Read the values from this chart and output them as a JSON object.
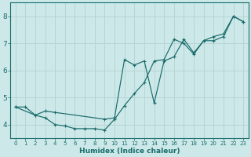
{
  "xlabel": "Humidex (Indice chaleur)",
  "bg_color": "#cce8e8",
  "grid_color": "#b8d4d4",
  "line_color": "#1a6b6b",
  "xlim": [
    -0.5,
    23.5
  ],
  "ylim": [
    3.5,
    8.5
  ],
  "yticks": [
    4,
    5,
    6,
    7,
    8
  ],
  "xticks": [
    0,
    1,
    2,
    3,
    4,
    5,
    6,
    7,
    8,
    9,
    10,
    11,
    12,
    13,
    14,
    15,
    16,
    17,
    18,
    19,
    20,
    21,
    22,
    23
  ],
  "series1_x": [
    0,
    1,
    2,
    3,
    4,
    5,
    6,
    7,
    8,
    9,
    10,
    11,
    12,
    13,
    14,
    15,
    16,
    17,
    18,
    19,
    20,
    21,
    22,
    23
  ],
  "series1_y": [
    4.65,
    4.65,
    4.35,
    4.25,
    4.0,
    3.95,
    3.85,
    3.85,
    3.85,
    3.8,
    4.2,
    4.7,
    5.15,
    5.55,
    6.35,
    6.4,
    7.15,
    7.0,
    6.6,
    7.1,
    7.25,
    7.35,
    8.0,
    7.8
  ],
  "series2_x": [
    0,
    2,
    3,
    4,
    9,
    10,
    11,
    12,
    13,
    14,
    15,
    16,
    17,
    18,
    19,
    20,
    21,
    22,
    23
  ],
  "series2_y": [
    4.65,
    4.35,
    4.5,
    4.45,
    4.2,
    4.25,
    6.4,
    6.2,
    6.35,
    4.8,
    6.35,
    6.5,
    7.15,
    6.65,
    7.1,
    7.1,
    7.25,
    8.0,
    7.8
  ]
}
